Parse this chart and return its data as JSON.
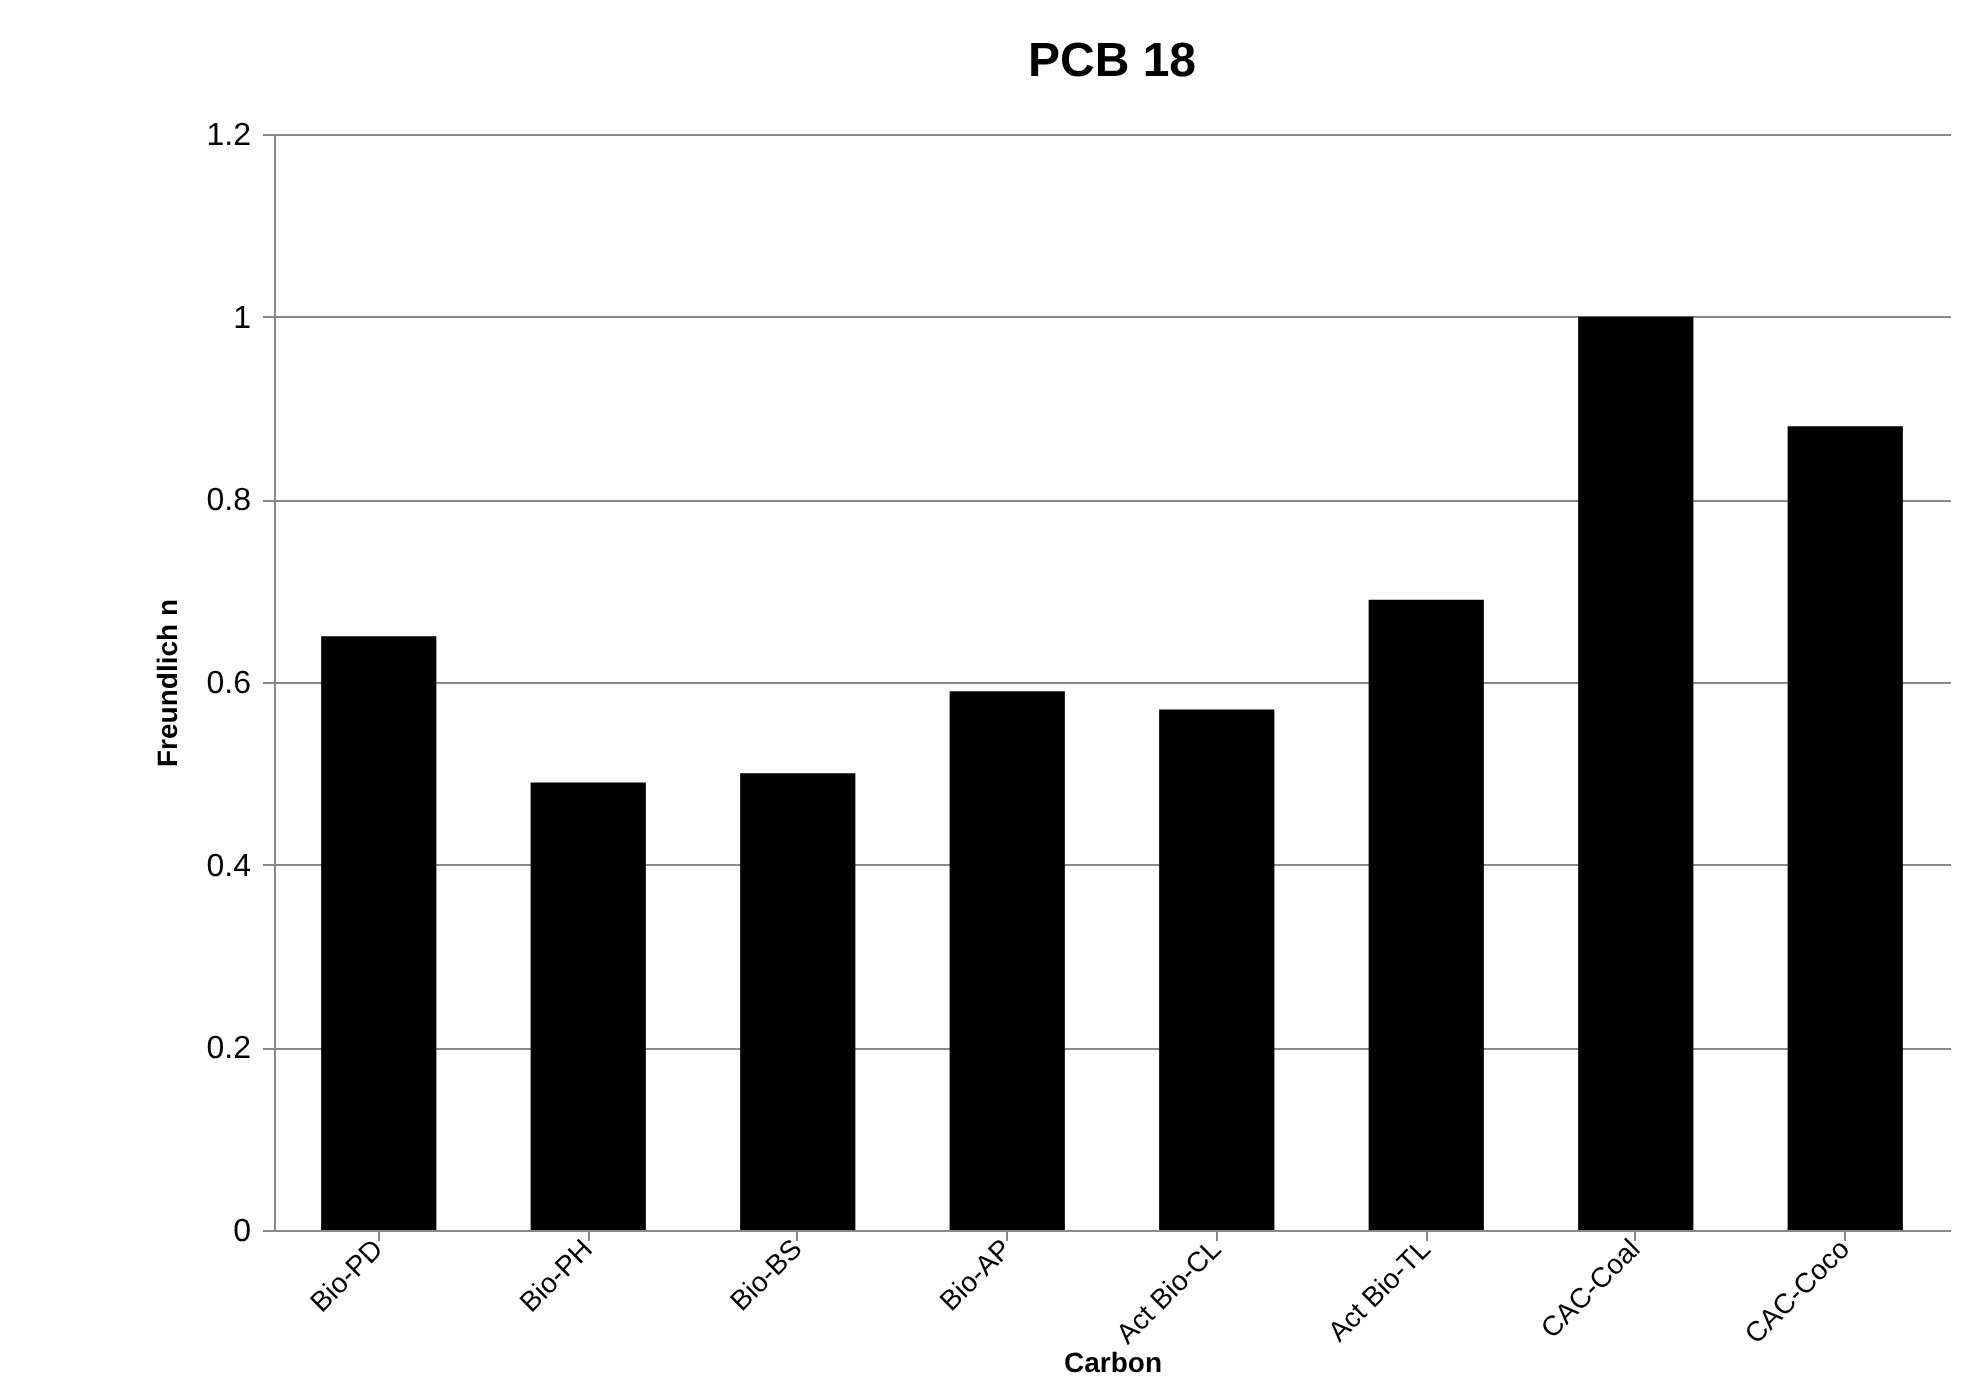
{
  "chart_data": {
    "type": "bar",
    "title": "PCB 18",
    "xlabel": "Carbon",
    "ylabel": "Freundlich n",
    "categories": [
      "Bio-PD",
      "Bio-PH",
      "Bio-BS",
      "Bio-AP",
      "Act Bio-CL",
      "Act Bio-TL",
      "CAC-Coal",
      "CAC-Coco"
    ],
    "values": [
      0.65,
      0.49,
      0.5,
      0.59,
      0.57,
      0.69,
      1.0,
      0.88
    ],
    "color": "#000000",
    "ylim": [
      0,
      1.2
    ],
    "yticks": [
      0,
      0.2,
      0.4,
      0.6,
      0.8,
      1,
      1.2
    ],
    "grid": "y"
  }
}
